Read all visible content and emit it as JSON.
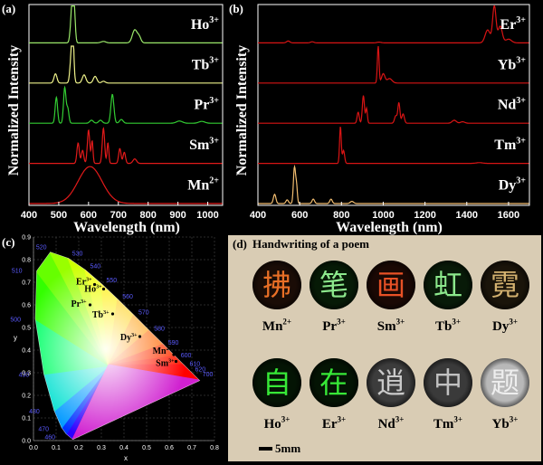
{
  "panel_a": {
    "tag": "(a)",
    "ylabel": "Normalized Intensity",
    "xlabel": "Wavelength (nm)",
    "xticks": [
      "400",
      "500",
      "600",
      "700",
      "800",
      "900",
      "1000"
    ],
    "xtick_values": [
      400,
      500,
      600,
      700,
      800,
      900,
      1000
    ],
    "xlim": [
      400,
      1050
    ],
    "series": [
      {
        "ion": "Ho",
        "charge": "3+",
        "color": "#9be86a",
        "peaks": [
          [
            545,
            1.0,
            5
          ],
          [
            551,
            0.85,
            4
          ],
          [
            650,
            0.04,
            8
          ],
          [
            755,
            0.35,
            8
          ],
          [
            770,
            0.15,
            6
          ]
        ]
      },
      {
        "ion": "Tb",
        "charge": "3+",
        "color": "#eef28a",
        "peaks": [
          [
            489,
            0.25,
            5
          ],
          [
            544,
            1.0,
            5
          ],
          [
            548,
            0.7,
            3
          ],
          [
            585,
            0.22,
            6
          ],
          [
            622,
            0.18,
            6
          ],
          [
            650,
            0.05,
            6
          ]
        ]
      },
      {
        "ion": "Pr",
        "charge": "3+",
        "color": "#33cc33",
        "peaks": [
          [
            492,
            0.7,
            4
          ],
          [
            520,
            0.95,
            4
          ],
          [
            530,
            0.4,
            4
          ],
          [
            610,
            0.08,
            6
          ],
          [
            640,
            0.08,
            6
          ],
          [
            680,
            0.78,
            5
          ],
          [
            710,
            0.1,
            6
          ],
          [
            905,
            0.06,
            10
          ],
          [
            980,
            0.05,
            10
          ]
        ]
      },
      {
        "ion": "Sm",
        "charge": "3+",
        "color": "#e21a1a",
        "peaks": [
          [
            565,
            0.55,
            4
          ],
          [
            580,
            0.35,
            4
          ],
          [
            600,
            0.9,
            4
          ],
          [
            612,
            0.6,
            3
          ],
          [
            650,
            0.95,
            4
          ],
          [
            665,
            0.55,
            3
          ],
          [
            705,
            0.4,
            4
          ],
          [
            720,
            0.3,
            4
          ],
          [
            755,
            0.12,
            6
          ]
        ]
      },
      {
        "ion": "Mn",
        "charge": "2+",
        "color": "#e21a1a",
        "peaks": [
          [
            605,
            1.0,
            40
          ]
        ]
      }
    ]
  },
  "panel_b": {
    "tag": "(b)",
    "ylabel": "Normalized Intensity",
    "xlabel": "Wavelength (nm)",
    "xticks": [
      "400",
      "600",
      "800",
      "1000",
      "1200",
      "1400",
      "1600"
    ],
    "xtick_values": [
      400,
      600,
      800,
      1000,
      1200,
      1400,
      1600
    ],
    "xlim": [
      400,
      1700
    ],
    "series": [
      {
        "ion": "Er",
        "charge": "3+",
        "color": "#d81414",
        "peaks": [
          [
            545,
            0.05,
            8
          ],
          [
            660,
            0.03,
            8
          ],
          [
            980,
            0.02,
            10
          ],
          [
            1500,
            0.35,
            12
          ],
          [
            1532,
            1.0,
            8
          ],
          [
            1560,
            0.45,
            10
          ],
          [
            1600,
            0.1,
            14
          ]
        ]
      },
      {
        "ion": "Yb",
        "charge": "3+",
        "color": "#d81414",
        "peaks": [
          [
            976,
            1.0,
            4
          ],
          [
            1000,
            0.25,
            8
          ],
          [
            1030,
            0.12,
            12
          ]
        ]
      },
      {
        "ion": "Nd",
        "charge": "3+",
        "color": "#d81414",
        "peaks": [
          [
            880,
            0.3,
            5
          ],
          [
            905,
            0.75,
            5
          ],
          [
            920,
            0.4,
            4
          ],
          [
            1060,
            0.2,
            6
          ],
          [
            1075,
            0.55,
            5
          ],
          [
            1095,
            0.25,
            6
          ],
          [
            1340,
            0.08,
            10
          ],
          [
            1380,
            0.04,
            10
          ]
        ]
      },
      {
        "ion": "Tm",
        "charge": "3+",
        "color": "#d81414",
        "peaks": [
          [
            795,
            1.0,
            4
          ],
          [
            810,
            0.35,
            5
          ],
          [
            1460,
            0.02,
            15
          ]
        ]
      },
      {
        "ion": "Dy",
        "charge": "3+",
        "color": "#f2bd70",
        "peaks": [
          [
            480,
            0.25,
            6
          ],
          [
            540,
            0.1,
            6
          ],
          [
            575,
            1.0,
            5
          ],
          [
            585,
            0.45,
            4
          ],
          [
            665,
            0.12,
            6
          ],
          [
            750,
            0.12,
            6
          ],
          [
            850,
            0.06,
            8
          ]
        ]
      }
    ]
  },
  "panel_c": {
    "tag": "(c)",
    "xlabel": "x",
    "ylabel": "y",
    "xticks": [
      "0.0",
      "0.1",
      "0.2",
      "0.3",
      "0.4",
      "0.5",
      "0.6",
      "0.7",
      "0.8"
    ],
    "yticks": [
      "0.0",
      "0.1",
      "0.2",
      "0.3",
      "0.4",
      "0.5",
      "0.6",
      "0.7",
      "0.8",
      "0.9"
    ],
    "xtick_values": [
      0,
      0.1,
      0.2,
      0.3,
      0.4,
      0.5,
      0.6,
      0.7,
      0.8
    ],
    "ytick_values": [
      0,
      0.1,
      0.2,
      0.3,
      0.4,
      0.5,
      0.6,
      0.7,
      0.8,
      0.9
    ],
    "locus_wavelengths": [
      "460",
      "470",
      "480",
      "490",
      "500",
      "510",
      "520",
      "530",
      "540",
      "550",
      "560",
      "570",
      "580",
      "590",
      "600",
      "610",
      "620",
      "700"
    ],
    "points": [
      {
        "ion": "Er",
        "charge": "3+",
        "x": 0.27,
        "y": 0.69
      },
      {
        "ion": "Ho",
        "charge": "3+",
        "x": 0.31,
        "y": 0.67
      },
      {
        "ion": "Pr",
        "charge": "3+",
        "x": 0.25,
        "y": 0.6
      },
      {
        "ion": "Tb",
        "charge": "3+",
        "x": 0.35,
        "y": 0.56
      },
      {
        "ion": "Dy",
        "charge": "3+",
        "x": 0.47,
        "y": 0.46
      },
      {
        "ion": "Mn",
        "charge": "2+",
        "x": 0.62,
        "y": 0.38
      },
      {
        "ion": "Sm",
        "charge": "3+",
        "x": 0.63,
        "y": 0.35
      }
    ]
  },
  "panel_d": {
    "tag": "(d)",
    "title": "Handwriting of a poem",
    "scale_label": "5mm",
    "samples": [
      {
        "ion": "Mn",
        "charge": "2+",
        "char": "拂",
        "ink": "#ff7a2a",
        "bg": "#1a0c06"
      },
      {
        "ion": "Pr",
        "charge": "3+",
        "char": "笔",
        "ink": "#9bff9b",
        "bg": "#061a06"
      },
      {
        "ion": "Sm",
        "charge": "3+",
        "char": "画",
        "ink": "#ff5a2a",
        "bg": "#1a0804"
      },
      {
        "ion": "Tb",
        "charge": "3+",
        "char": "虹",
        "ink": "#9bff9b",
        "bg": "#081a08"
      },
      {
        "ion": "Dy",
        "charge": "3+",
        "char": "霓",
        "ink": "#e8c27a",
        "bg": "#1a140a"
      },
      {
        "ion": "Ho",
        "charge": "3+",
        "char": "自",
        "ink": "#3dff3d",
        "bg": "#041404"
      },
      {
        "ion": "Er",
        "charge": "3+",
        "char": "在",
        "ink": "#3dff3d",
        "bg": "#041404"
      },
      {
        "ion": "Nd",
        "charge": "3+",
        "char": "逍",
        "ink": "#d9d9d9",
        "bg": "#3c3c3c"
      },
      {
        "ion": "Tm",
        "charge": "3+",
        "char": "中",
        "ink": "#d0d0d0",
        "bg": "#3a3a3a"
      },
      {
        "ion": "Yb",
        "charge": "3+",
        "char": "题",
        "ink": "#f4f4f4",
        "bg": "#b8b8b8"
      }
    ]
  }
}
